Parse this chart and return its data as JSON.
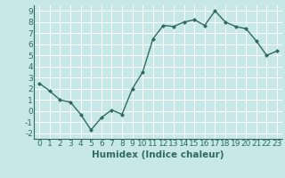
{
  "x": [
    0,
    1,
    2,
    3,
    4,
    5,
    6,
    7,
    8,
    9,
    10,
    11,
    12,
    13,
    14,
    15,
    16,
    17,
    18,
    19,
    20,
    21,
    22,
    23
  ],
  "y": [
    2.5,
    1.8,
    1.0,
    0.8,
    -0.3,
    -1.7,
    -0.6,
    0.1,
    -0.3,
    2.0,
    3.5,
    6.5,
    7.7,
    7.6,
    8.0,
    8.2,
    7.7,
    9.0,
    8.0,
    7.6,
    7.4,
    6.3,
    5.0,
    5.4
  ],
  "line_color": "#2e6b5e",
  "marker": "D",
  "marker_size": 2.0,
  "bg_color": "#c8e8e8",
  "grid_color": "#ffffff",
  "xlabel": "Humidex (Indice chaleur)",
  "xlim": [
    -0.5,
    23.5
  ],
  "ylim": [
    -2.5,
    9.5
  ],
  "xticks": [
    0,
    1,
    2,
    3,
    4,
    5,
    6,
    7,
    8,
    9,
    10,
    11,
    12,
    13,
    14,
    15,
    16,
    17,
    18,
    19,
    20,
    21,
    22,
    23
  ],
  "yticks": [
    -2,
    -1,
    0,
    1,
    2,
    3,
    4,
    5,
    6,
    7,
    8,
    9
  ],
  "tick_fontsize": 6.5,
  "xlabel_fontsize": 7.5,
  "linewidth": 1.0
}
